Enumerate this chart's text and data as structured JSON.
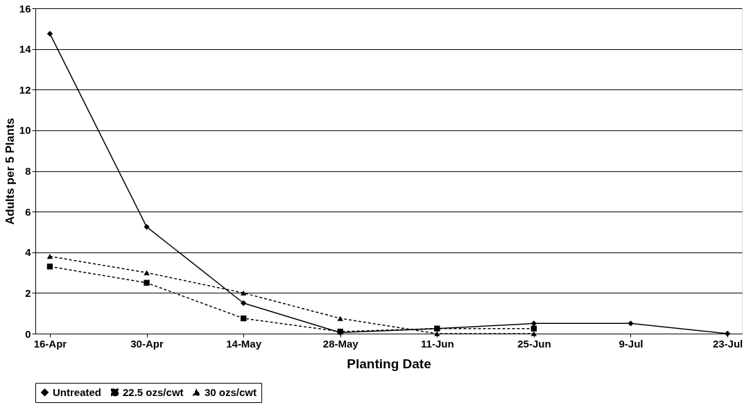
{
  "chart_data": {
    "type": "line",
    "xlabel": "Planting Date",
    "ylabel": "Adults per 5 Plants",
    "categories": [
      "16-Apr",
      "30-Apr",
      "14-May",
      "28-May",
      "11-Jun",
      "25-Jun",
      "9-Jul",
      "23-Jul"
    ],
    "ylim": [
      0,
      16
    ],
    "yticks": [
      0,
      2,
      4,
      6,
      8,
      10,
      12,
      14,
      16
    ],
    "grid": "y",
    "legend": "bottom",
    "series": [
      {
        "name": "Untreated",
        "color": "#000000",
        "marker": "diamond",
        "line_style": "solid",
        "values": [
          14.75,
          5.25,
          1.5,
          0.05,
          0.25,
          0.5,
          0.5,
          0
        ]
      },
      {
        "name": "22.5 ozs/cwt",
        "color": "#000000",
        "marker": "square",
        "line_style": "dashed",
        "values": [
          3.3,
          2.5,
          0.75,
          0.1,
          0.25,
          0.25,
          null,
          null
        ]
      },
      {
        "name": "30 ozs/cwt",
        "color": "#000000",
        "marker": "triangle",
        "line_style": "dashed",
        "values": [
          3.8,
          3.0,
          2.0,
          0.75,
          0,
          0,
          null,
          null
        ]
      }
    ]
  }
}
